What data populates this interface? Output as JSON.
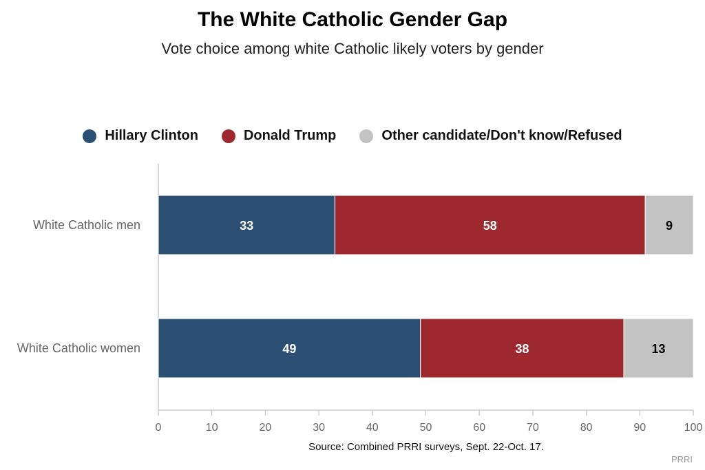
{
  "chart_data": {
    "type": "bar",
    "orientation": "horizontal",
    "stacked": true,
    "title": "The White Catholic Gender Gap",
    "subtitle": "Vote choice among white Catholic likely voters by gender",
    "categories": [
      "White Catholic men",
      "White Catholic women"
    ],
    "series": [
      {
        "name": "Hillary Clinton",
        "color": "#2b4f73",
        "label_color": "#ffffff",
        "values": [
          33,
          49
        ]
      },
      {
        "name": "Donald Trump",
        "color": "#9d282d",
        "label_color": "#ffffff",
        "values": [
          58,
          38
        ]
      },
      {
        "name": "Other candidate/Don't know/Refused",
        "color": "#c3c3c3",
        "label_color": "#000000",
        "values": [
          9,
          13
        ]
      }
    ],
    "xlim": [
      0,
      100
    ],
    "xticks": [
      0,
      10,
      20,
      30,
      40,
      50,
      60,
      70,
      80,
      90,
      100
    ],
    "grid": false,
    "legend_position": "top-center",
    "source": "Source: Combined PRRI surveys, Sept. 22-Oct. 17.",
    "credit": "PRRI"
  }
}
